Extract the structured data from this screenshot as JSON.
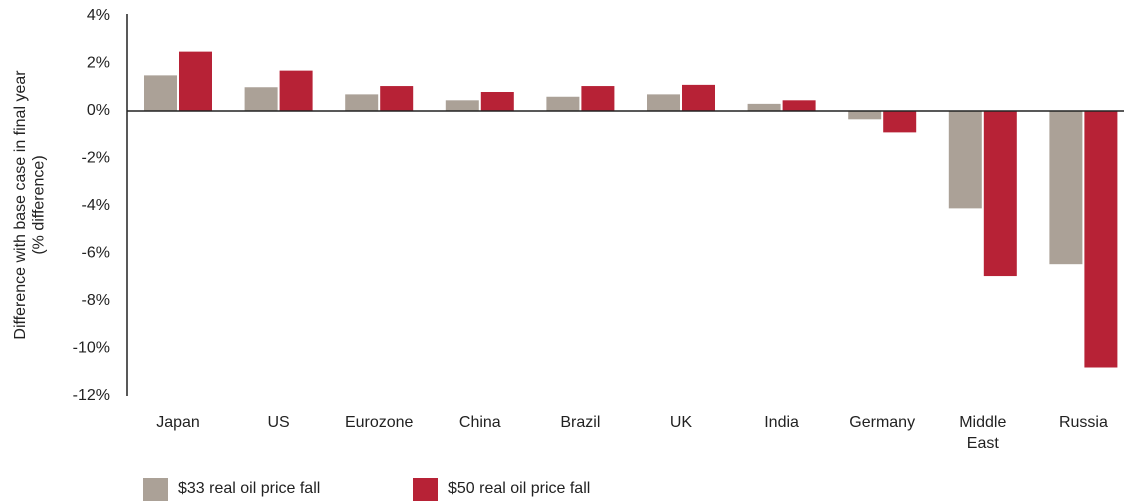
{
  "chart_data": {
    "type": "bar",
    "y_label": "Difference with base case in final year (% difference)",
    "categories": [
      "Japan",
      "US",
      "Eurozone",
      "China",
      "Brazil",
      "UK",
      "India",
      "Germany",
      "Middle East",
      "Russia"
    ],
    "series": [
      {
        "name": "$33 real oil price fall",
        "color": "#aba197",
        "values": [
          1.5,
          1.0,
          0.7,
          0.45,
          0.6,
          0.7,
          0.3,
          -0.35,
          -4.1,
          -6.45
        ]
      },
      {
        "name": "$50 real oil price fall",
        "color": "#b72236",
        "values": [
          2.5,
          1.7,
          1.05,
          0.8,
          1.05,
          1.1,
          0.45,
          -0.9,
          -6.95,
          -10.8
        ]
      }
    ],
    "ylim": [
      -12,
      4
    ],
    "yticks": [
      {
        "value": 4,
        "label": "4%"
      },
      {
        "value": 2,
        "label": "2%"
      },
      {
        "value": 0,
        "label": "0%"
      },
      {
        "value": -2,
        "label": "-2%"
      },
      {
        "value": -4,
        "label": "-4%"
      },
      {
        "value": -6,
        "label": "-6%"
      },
      {
        "value": -8,
        "label": "-8%"
      },
      {
        "value": -10,
        "label": "-10%"
      },
      {
        "value": -12,
        "label": "-12%"
      }
    ]
  }
}
